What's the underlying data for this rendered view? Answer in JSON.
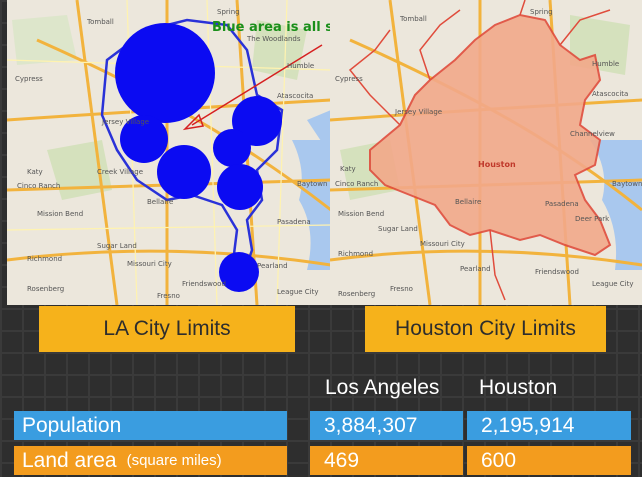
{
  "annotation": "Blue area is all solar panels",
  "la_map": {
    "labels": [
      "Tomball",
      "Cypress",
      "Jersey Village",
      "Cinco Ranch",
      "Katy",
      "Creek Village",
      "Bellaire",
      "Mission Bend",
      "Richmond",
      "Sugar Land",
      "Pearland",
      "League City",
      "Friendswood",
      "Pasadena",
      "Baytown",
      "Humble",
      "Atascocita",
      "Spring",
      "The Woodlands",
      "Rosenberg",
      "Missouri City",
      "Fresno"
    ]
  },
  "houston_map": {
    "center_label": "Houston",
    "labels": [
      "Tomball",
      "Spring",
      "Humble",
      "Atascocita",
      "Cypress",
      "Jersey Village",
      "Cinco Ranch",
      "Katy",
      "Mission Bend",
      "Bellaire",
      "Pasadena",
      "Baytown",
      "Sugar Land",
      "Richmond",
      "Missouri City",
      "Pearland",
      "Friendswood",
      "League City",
      "Rosenberg",
      "Fresno",
      "Deer Park",
      "Channelview"
    ]
  },
  "banners": {
    "la": "LA City Limits",
    "houston": "Houston City Limits"
  },
  "table": {
    "col_la": "Los Angeles",
    "col_houston": "Houston",
    "rows": [
      {
        "label": "Population",
        "unit": "",
        "la": "3,884,307",
        "houston": "2,195,914",
        "color": "#3a9de0"
      },
      {
        "label": "Land area",
        "unit": "(square miles)",
        "la": "469",
        "houston": "600",
        "color": "#f39c1e"
      }
    ]
  },
  "colors": {
    "solar_blue": "#0b0bf2",
    "houston_fill": "#f2a98a",
    "houston_border": "#e04c3c",
    "annotation_green": "#1a8f1a",
    "banner_yellow": "#f6b21b"
  }
}
